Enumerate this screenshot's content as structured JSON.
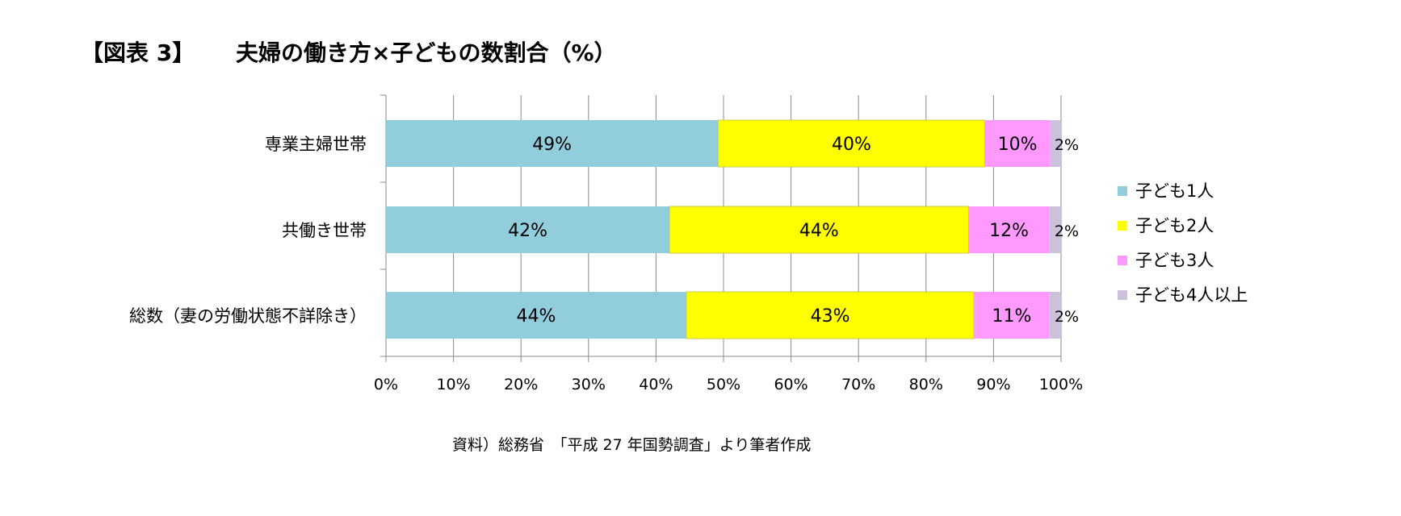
{
  "figure_label": "【図表 3】",
  "title": "夫婦の働き方×子どもの数割合（%）",
  "source": "資料）総務省　「平成 27 年国勢調査」より筆者作成",
  "chart_data": {
    "type": "bar",
    "orientation": "horizontal",
    "stacked": true,
    "title": "夫婦の働き方×子どもの数割合（%）",
    "categories": [
      "専業主婦世帯",
      "共働き世帯",
      "総数（妻の労働状態不詳除き）"
    ],
    "series": [
      {
        "name": "子ども1人",
        "color": "#92CDDC",
        "values": [
          49.2,
          42.0,
          44.5
        ],
        "labels": [
          "49%",
          "42%",
          "44%"
        ]
      },
      {
        "name": "子ども2人",
        "color": "#FFFF00",
        "values": [
          39.5,
          44.3,
          42.6
        ],
        "labels": [
          "40%",
          "44%",
          "43%"
        ]
      },
      {
        "name": "子ども3人",
        "color": "#FF99FF",
        "values": [
          9.7,
          12.0,
          11.2
        ],
        "labels": [
          "10%",
          "12%",
          "11%"
        ]
      },
      {
        "name": "子ども4人以上",
        "color": "#CCC0DA",
        "values": [
          1.6,
          1.7,
          1.7
        ],
        "labels": [
          "2%",
          "2%",
          "2%"
        ]
      }
    ],
    "x_ticks": [
      "0%",
      "10%",
      "20%",
      "30%",
      "40%",
      "50%",
      "60%",
      "70%",
      "80%",
      "90%",
      "100%"
    ],
    "xlim": [
      0,
      100
    ],
    "xlabel": "",
    "ylabel": "",
    "grid": "vertical",
    "legend_position": "right"
  }
}
